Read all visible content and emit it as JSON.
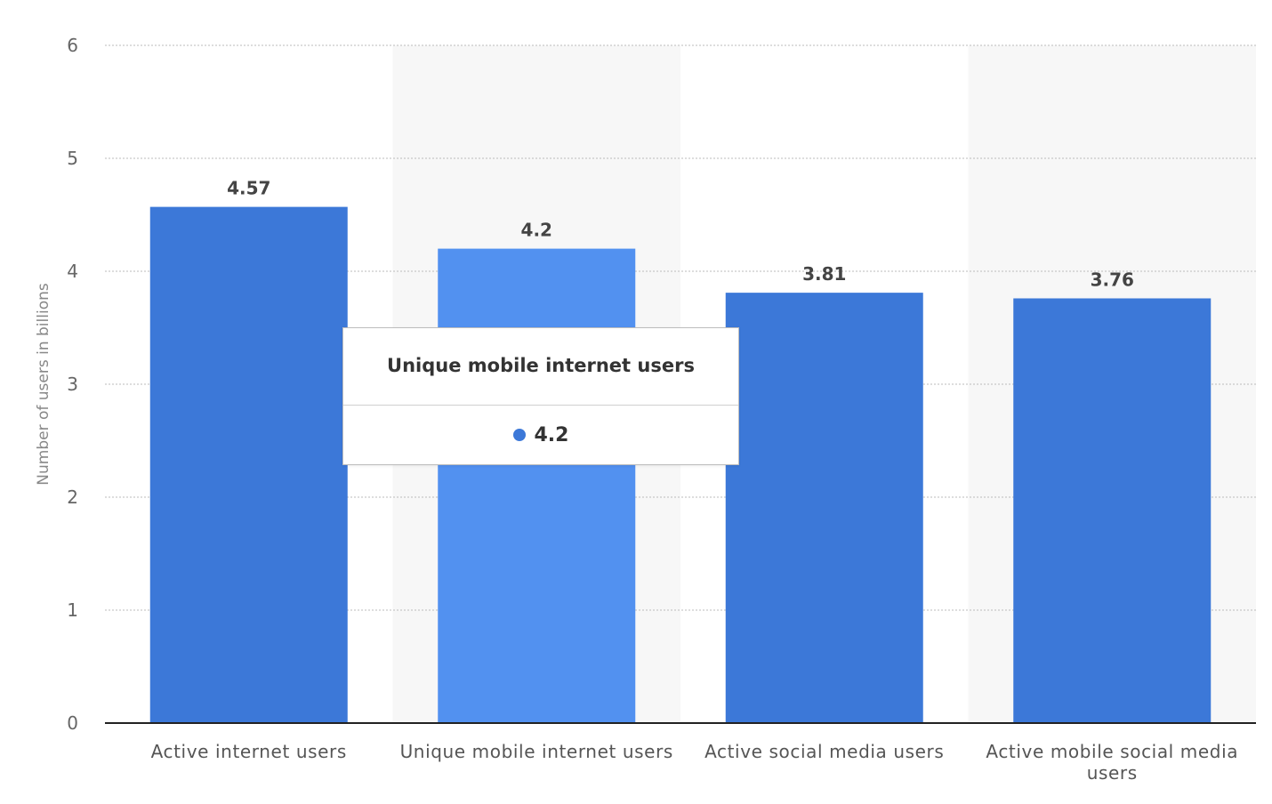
{
  "chart_data": {
    "type": "bar",
    "categories": [
      "Active internet users",
      "Unique mobile internet users",
      "Active social media users",
      "Active mobile social media users"
    ],
    "values": [
      4.57,
      4.2,
      3.81,
      3.76
    ],
    "data_labels": [
      "4.57",
      "4.2",
      "3.81",
      "3.76"
    ],
    "title": "",
    "xlabel": "",
    "ylabel": "Number of users in billions",
    "ylim": [
      0,
      6
    ],
    "yticks": [
      0,
      1,
      2,
      3,
      4,
      5,
      6
    ],
    "grid": true,
    "highlighted_index": 1
  },
  "colors": {
    "bar": "#3c78d8",
    "bar_highlight": "#5291f0",
    "band": "#f7f7f7",
    "grid": "#bbbbbb",
    "axis": "#222222"
  },
  "tooltip": {
    "title": "Unique mobile internet users",
    "value": "4.2",
    "marker_color": "#3c78d8"
  }
}
